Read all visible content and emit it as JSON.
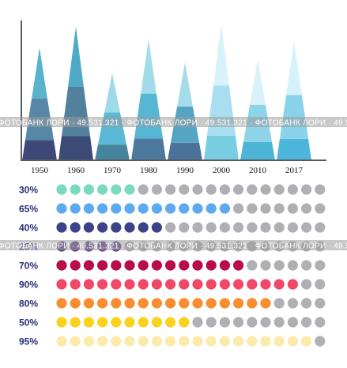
{
  "chart_data": [
    {
      "type": "area",
      "title": "",
      "xlabel": "",
      "ylabel": "",
      "categories": [
        "1950",
        "1960",
        "1970",
        "1980",
        "1990",
        "2000",
        "2010",
        "2017"
      ],
      "values": [
        145,
        172,
        112,
        156,
        126,
        175,
        130,
        153
      ],
      "ylim": [
        0,
        180
      ],
      "grid": false,
      "colors": [
        [
          "#3d4878",
          "#5688a6",
          "#58b3cc"
        ],
        [
          "#3c4a76",
          "#53809d",
          "#4ea9c6"
        ],
        [
          "#46839d",
          "#59b9d6",
          "#9ddaea"
        ],
        [
          "#4b7a9d",
          "#57b6d4",
          "#a3dbea"
        ],
        [
          "#4b7397",
          "#55a4c4",
          "#a6dbea"
        ],
        [
          "#79cde0",
          "#a8def0",
          "#d7f2f9"
        ],
        [
          "#4db4d6",
          "#8dd4e8",
          "#d9f1f8"
        ],
        [
          "#4eb6dc",
          "#88d3ea",
          "#d5f2fa"
        ]
      ]
    },
    {
      "type": "table",
      "dots_per_row": 20,
      "inactive_color": "#b0afb4",
      "rows": [
        {
          "label": "30%",
          "value": 0.3,
          "color": "#7bd9c2"
        },
        {
          "label": "65%",
          "value": 0.65,
          "color": "#5caaf1"
        },
        {
          "label": "40%",
          "value": 0.4,
          "color": "#3c438b"
        },
        {
          "label": "25%",
          "value": 0.25,
          "color": "#5f3f8f"
        },
        {
          "label": "70%",
          "value": 0.7,
          "color": "#b80c4a"
        },
        {
          "label": "90%",
          "value": 0.9,
          "color": "#f24867"
        },
        {
          "label": "80%",
          "value": 0.8,
          "color": "#f88e31"
        },
        {
          "label": "50%",
          "value": 0.5,
          "color": "#fbd11e"
        },
        {
          "label": "95%",
          "value": 0.95,
          "color": "#fbeaa9"
        }
      ]
    }
  ],
  "watermark": {
    "text": "ФОТОБАНК ЛОРИ · 49.531.321 · ФОТОБАНК ЛОРИ · 49.531.321 · ФОТОБАНК ЛОРИ · 49.531.321",
    "color": "#9a9a9a"
  }
}
